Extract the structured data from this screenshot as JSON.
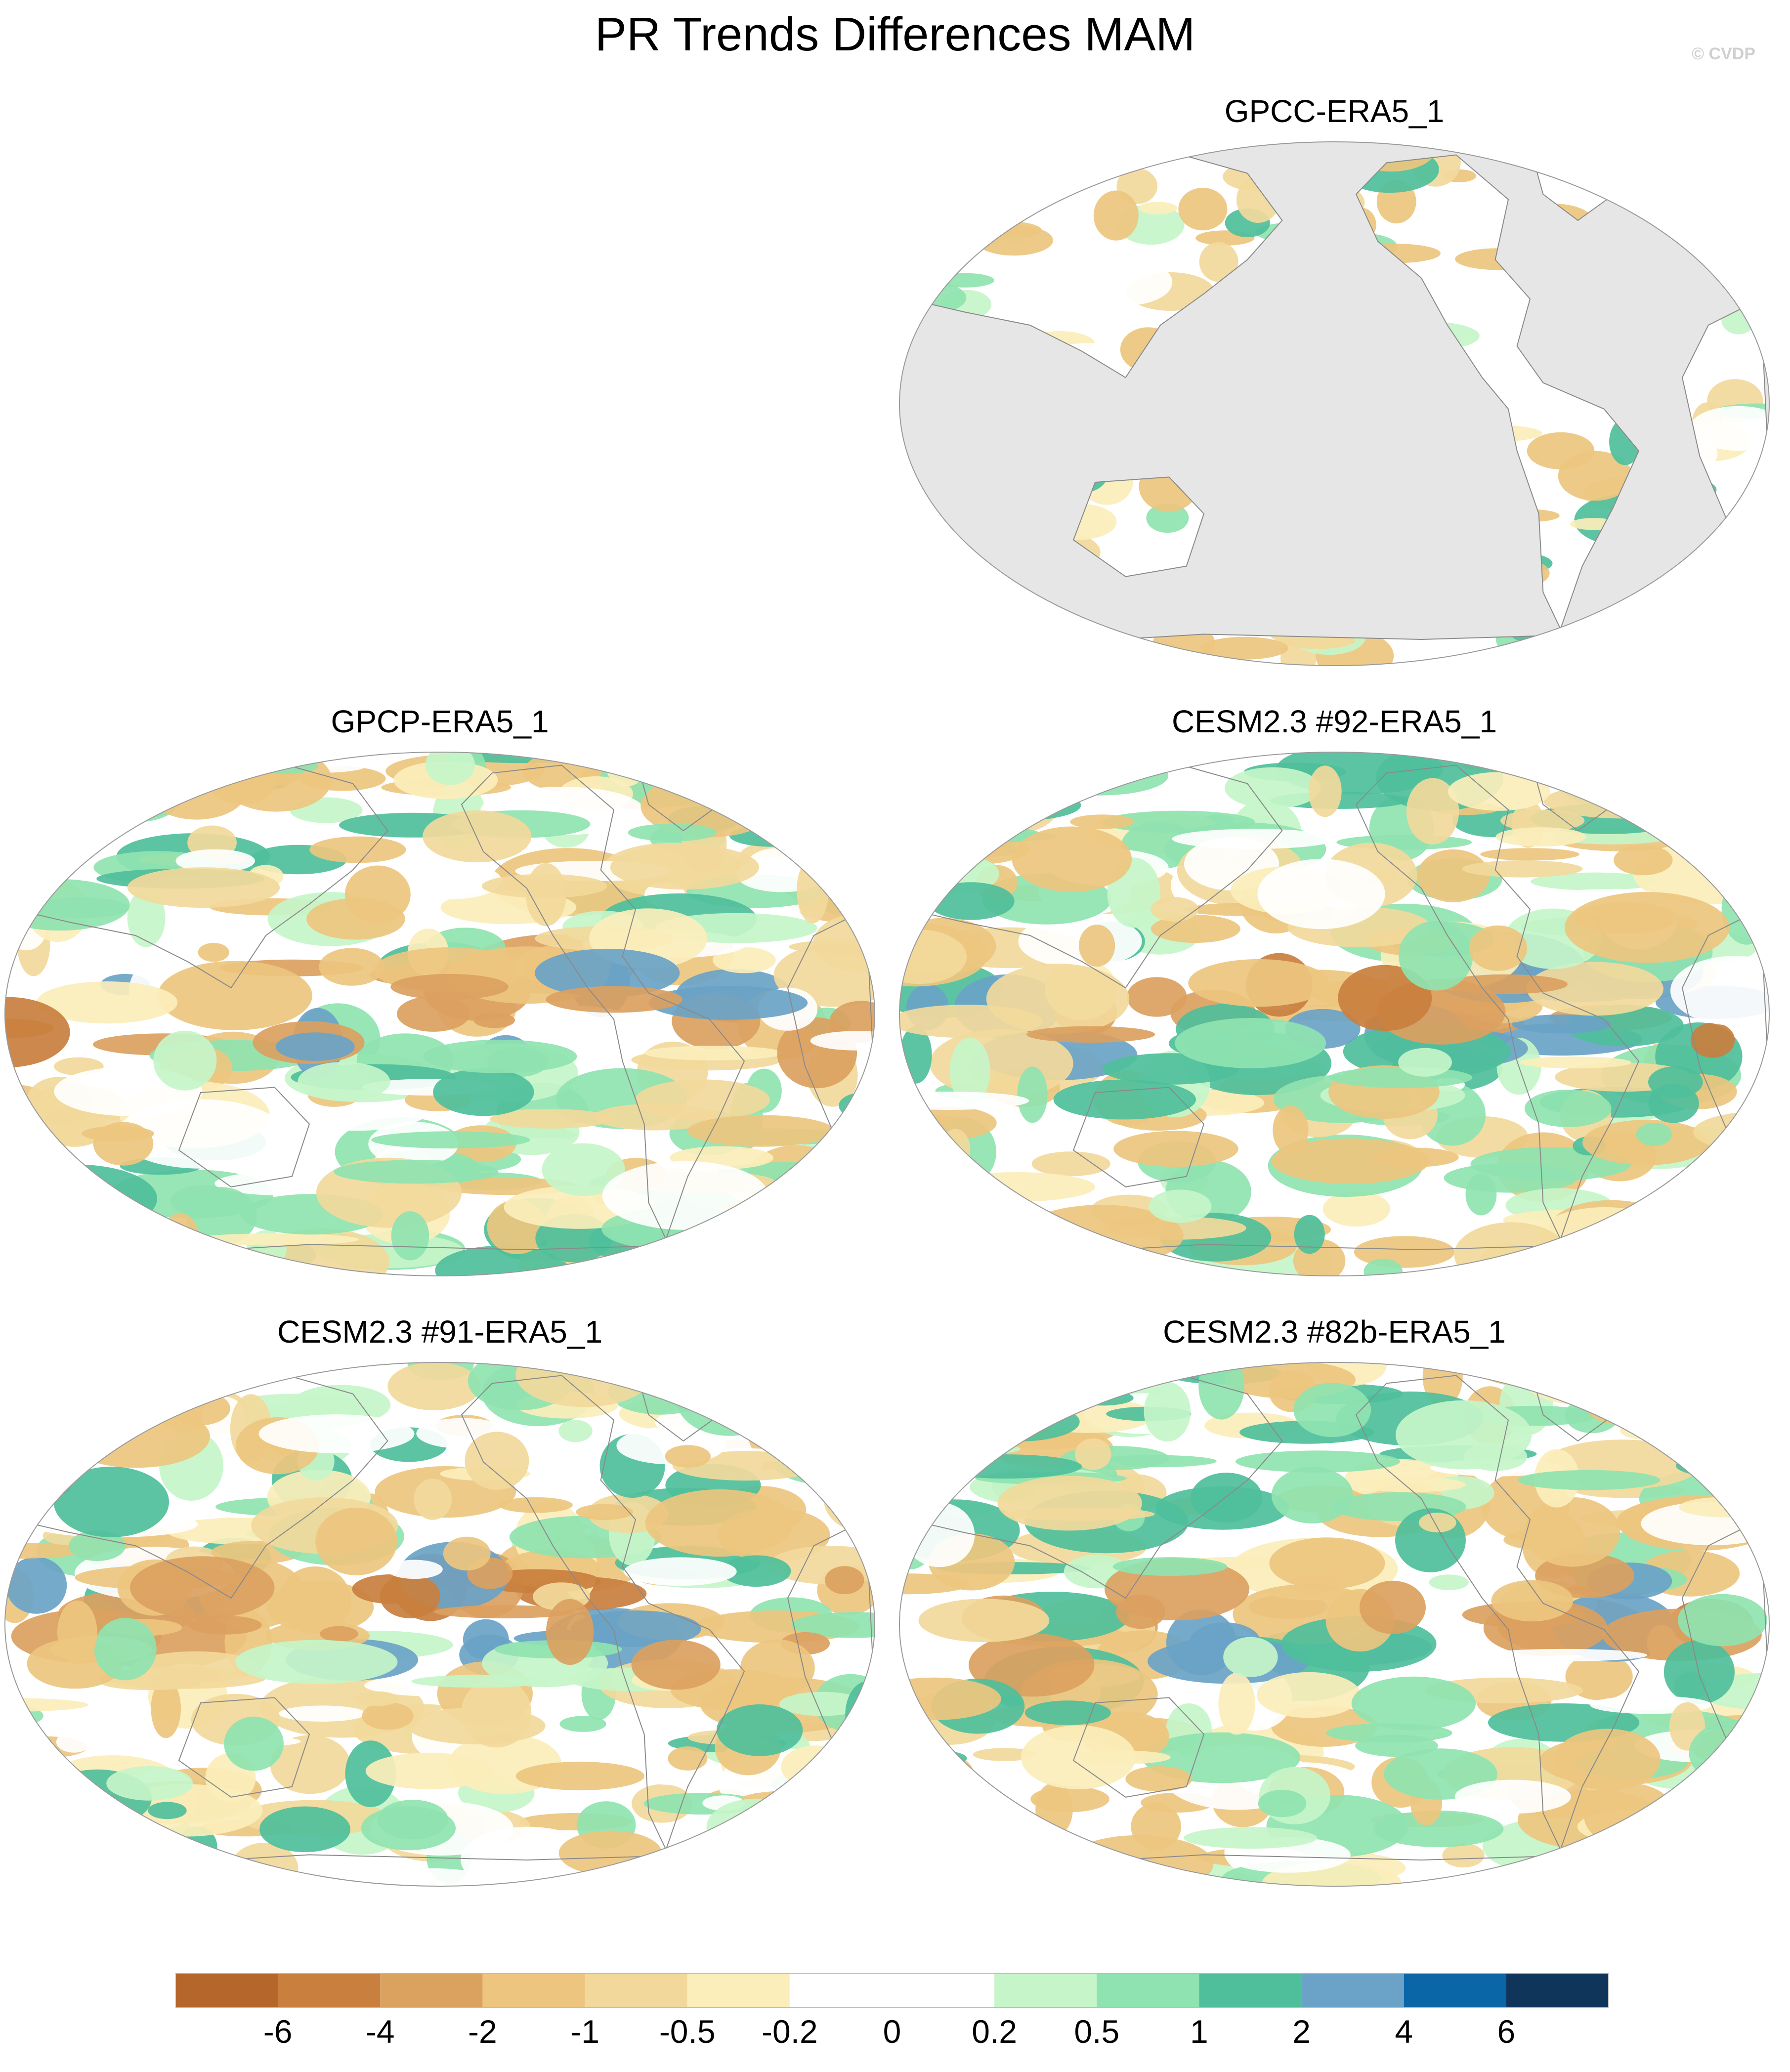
{
  "title": "PR Trends Differences MAM",
  "watermark": "© CVDP",
  "panels": [
    {
      "id": "gpcc",
      "title": "GPCC-ERA5_1",
      "land_only": true
    },
    {
      "id": "gpcp",
      "title": "GPCP-ERA5_1",
      "land_only": false
    },
    {
      "id": "cesm92",
      "title": "CESM2.3 #92-ERA5_1",
      "land_only": false
    },
    {
      "id": "cesm91",
      "title": "CESM2.3 #91-ERA5_1",
      "land_only": false
    },
    {
      "id": "cesm82b",
      "title": "CESM2.3 #82b-ERA5_1",
      "land_only": false
    }
  ],
  "colorbar": {
    "labels": [
      "-6",
      "-4",
      "-2",
      "-1",
      "-0.5",
      "-0.2",
      "0",
      "0.2",
      "0.5",
      "1",
      "2",
      "4",
      "6"
    ],
    "colors": [
      "#b5662a",
      "#c97f3e",
      "#dba15f",
      "#edc57f",
      "#f2d99b",
      "#fbeebb",
      "#ffffff",
      "#ffffff",
      "#c6f5c9",
      "#8fe3b0",
      "#4fbf9b",
      "#6aa3c7",
      "#0b66a8",
      "#10355a"
    ]
  },
  "map_colors": {
    "missing": "#e6e6e6",
    "coast": "#8a8a8a",
    "frame": "#9a9a9a"
  }
}
